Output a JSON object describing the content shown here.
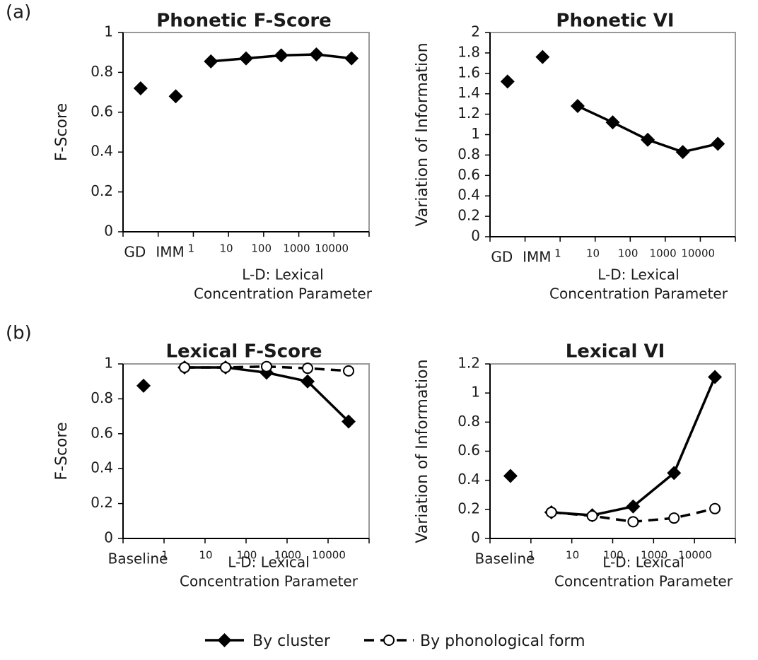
{
  "panel_labels": [
    "(a)",
    "(b)"
  ],
  "chart_data": [
    {
      "type": "line",
      "title": "Phonetic F-Score",
      "ylabel": "F-Score",
      "xlabel": [
        "L-D: Lexical",
        "Concentration Parameter"
      ],
      "categories": [
        "GD",
        "IMM",
        "1",
        "10",
        "100",
        "1000",
        "10000"
      ],
      "ylim": [
        0,
        1
      ],
      "yticks": [
        0,
        0.2,
        0.4,
        0.6,
        0.8,
        1
      ],
      "series": [
        {
          "name": "By cluster",
          "color": "#000000",
          "line": "solid",
          "marker": "diamond",
          "values": [
            null,
            null,
            0.855,
            0.87,
            0.885,
            0.89,
            0.87
          ]
        },
        {
          "color": "#000000",
          "line": "none",
          "marker": "diamond",
          "values": [
            0.72,
            0.68,
            null,
            null,
            null,
            null,
            null
          ]
        }
      ]
    },
    {
      "type": "line",
      "title": "Phonetic VI",
      "ylabel": "Variation of Information",
      "xlabel": [
        "L-D: Lexical",
        "Concentration Parameter"
      ],
      "categories": [
        "GD",
        "IMM",
        "1",
        "10",
        "100",
        "1000",
        "10000"
      ],
      "ylim": [
        0,
        2
      ],
      "yticks": [
        0,
        0.2,
        0.4,
        0.6,
        0.8,
        1,
        1.2,
        1.4,
        1.6,
        1.8,
        2
      ],
      "series": [
        {
          "name": "By cluster",
          "color": "#000000",
          "line": "solid",
          "marker": "diamond",
          "values": [
            null,
            null,
            1.28,
            1.12,
            0.95,
            0.83,
            0.91
          ]
        },
        {
          "color": "#000000",
          "line": "none",
          "marker": "diamond",
          "values": [
            1.52,
            1.76,
            null,
            null,
            null,
            null,
            null
          ]
        }
      ]
    },
    {
      "type": "line",
      "title": "Lexical F-Score",
      "ylabel": "F-Score",
      "xlabel": [
        "L-D: Lexical",
        "Concentration Parameter"
      ],
      "categories": [
        "Baseline",
        "1",
        "10",
        "100",
        "1000",
        "10000"
      ],
      "ylim": [
        0,
        1
      ],
      "yticks": [
        0,
        0.2,
        0.4,
        0.6,
        0.8,
        1
      ],
      "series": [
        {
          "name": "By cluster",
          "color": "#000000",
          "line": "solid",
          "marker": "diamond",
          "values": [
            null,
            0.98,
            0.98,
            0.95,
            0.9,
            0.67
          ]
        },
        {
          "name": "By phonological form",
          "color": "#000000",
          "line": "dashed",
          "marker": "circle",
          "values": [
            null,
            0.98,
            0.98,
            0.985,
            0.975,
            0.96
          ]
        },
        {
          "color": "#000000",
          "line": "none",
          "marker": "diamond",
          "values": [
            0.875,
            null,
            null,
            null,
            null,
            null
          ]
        }
      ]
    },
    {
      "type": "line",
      "title": "Lexical VI",
      "ylabel": "Variation of Information",
      "xlabel": [
        "L-D: Lexical",
        "Concentration Parameter"
      ],
      "categories": [
        "Baseline",
        "1",
        "10",
        "100",
        "1000",
        "10000"
      ],
      "ylim": [
        0,
        1.2
      ],
      "yticks": [
        0,
        0.2,
        0.4,
        0.6,
        0.8,
        1,
        1.2
      ],
      "series": [
        {
          "name": "By cluster",
          "color": "#000000",
          "line": "solid",
          "marker": "diamond",
          "values": [
            null,
            0.18,
            0.16,
            0.22,
            0.45,
            1.11
          ]
        },
        {
          "name": "By phonological form",
          "color": "#000000",
          "line": "dashed",
          "marker": "circle",
          "values": [
            null,
            0.18,
            0.155,
            0.115,
            0.14,
            0.205
          ]
        },
        {
          "color": "#000000",
          "line": "none",
          "marker": "diamond",
          "values": [
            0.43,
            null,
            null,
            null,
            null,
            null
          ]
        }
      ]
    }
  ]
}
